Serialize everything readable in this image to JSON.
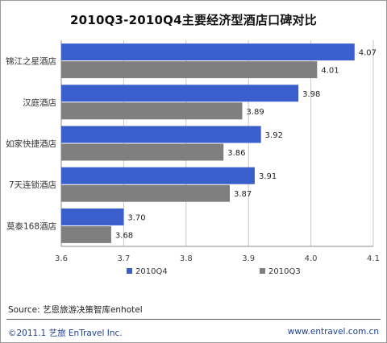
{
  "chart_data": {
    "type": "bar",
    "orientation": "horizontal",
    "title": "2010Q3-2010Q4主要经济型酒店口碑对比",
    "categories": [
      "锦江之星酒店",
      "汉庭酒店",
      "如家快捷酒店",
      "7天连锁酒店",
      "莫泰168酒店"
    ],
    "series": [
      {
        "name": "2010Q4",
        "values": [
          4.07,
          3.98,
          3.92,
          3.91,
          3.7
        ],
        "labels": [
          "4.07",
          "3.98",
          "3.92",
          "3.91",
          "3.70"
        ],
        "color": "#3a5fcd"
      },
      {
        "name": "2010Q3",
        "values": [
          4.01,
          3.89,
          3.86,
          3.87,
          3.68
        ],
        "labels": [
          "4.01",
          "3.89",
          "3.86",
          "3.87",
          "3.68"
        ],
        "color": "#7f7f7f"
      }
    ],
    "xlim": [
      3.6,
      4.1
    ],
    "x_ticks": [
      3.6,
      3.7,
      3.8,
      3.9,
      4.0,
      4.1
    ],
    "x_tick_labels": [
      "3.6",
      "3.7",
      "3.8",
      "3.9",
      "4.0",
      "4.1"
    ],
    "grid": "vertical",
    "legend": "bottom"
  },
  "footer": {
    "source": "Source: 艺恩旅游决策智库enhotel",
    "copyright": "©2011.1  艺旅 EnTravel Inc.",
    "website": "www.entravel.com.cn"
  }
}
